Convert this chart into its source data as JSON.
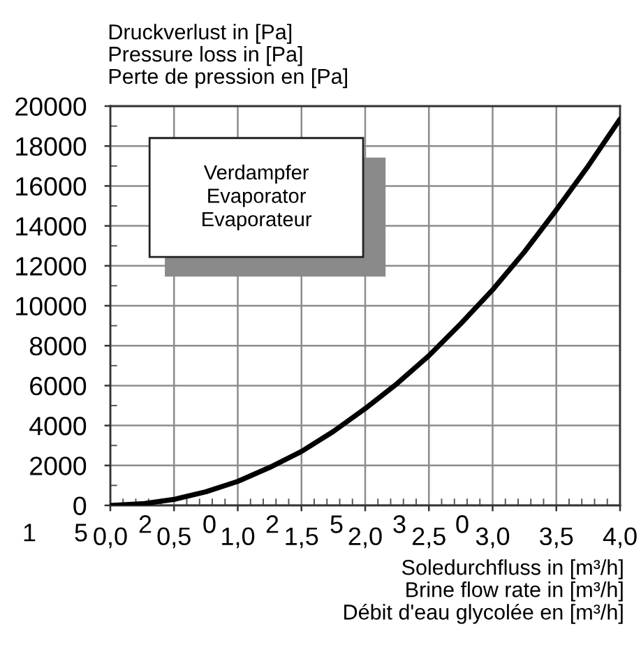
{
  "chart_data": {
    "type": "line",
    "xlabel": "Soledurchfluss in [m³/h]\nBrine flow rate in [m³/h]\nDébit d'eau glycolée en [m³/h]",
    "ylabel": "Druckverlust in [Pa]\nPressure loss in [Pa]\nPerte de pression en [Pa]",
    "annotations": [
      "Verdampfer\nEvaporator\nEvaporateur",
      "1",
      "5",
      "2",
      "0",
      "2",
      "5",
      "3",
      "0"
    ],
    "x": [
      0,
      0.25,
      0.5,
      0.75,
      1.0,
      1.25,
      1.5,
      1.75,
      2.0,
      2.25,
      2.5,
      2.75,
      3.0,
      3.25,
      3.5,
      3.75,
      4.0
    ],
    "series": [
      {
        "color": "#000000",
        "values": [
          0,
          80,
          300,
          680,
          1200,
          1900,
          2700,
          3700,
          4850,
          6100,
          7500,
          9100,
          10800,
          12700,
          14800,
          17000,
          19350
        ]
      }
    ],
    "xlim": [
      0,
      4
    ],
    "ylim": [
      0,
      20000
    ],
    "xticks": [
      {
        "value": 0,
        "label": "0,0"
      },
      {
        "value": 0.5,
        "label": "0,5"
      },
      {
        "value": 1,
        "label": "1,0"
      },
      {
        "value": 1.5,
        "label": "1,5"
      },
      {
        "value": 2,
        "label": "2,0"
      },
      {
        "value": 2.5,
        "label": "2,5"
      },
      {
        "value": 3,
        "label": "3,0"
      },
      {
        "value": 3.5,
        "label": "3,5"
      },
      {
        "value": 4,
        "label": "4,0"
      }
    ],
    "yticks": [
      0,
      2000,
      4000,
      6000,
      8000,
      10000,
      12000,
      14000,
      16000,
      18000,
      20000
    ],
    "grid": true,
    "line_style": "solid"
  }
}
